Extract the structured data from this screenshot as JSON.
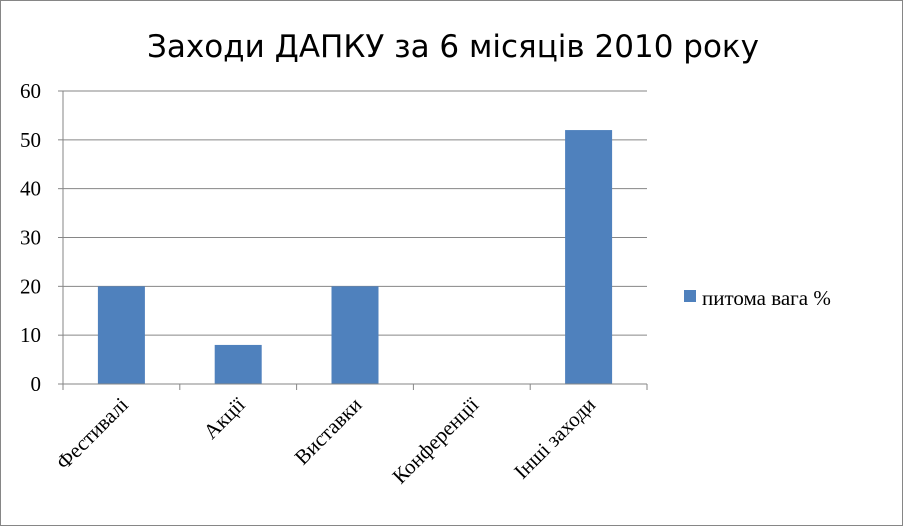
{
  "chart_data": {
    "type": "bar",
    "title": "Заходи ДАПКУ за 6 місяців 2010 року",
    "categories": [
      "Фестивалі",
      "Акції",
      "Виставки",
      "Конференції",
      "Інші заходи"
    ],
    "series": [
      {
        "name": "питома вага %",
        "values": [
          20,
          8,
          20,
          0,
          52
        ],
        "color": "#4F81BD"
      }
    ],
    "yticks": [
      "0",
      "10",
      "20",
      "30",
      "40",
      "50",
      "60"
    ],
    "ylim": [
      0,
      60
    ],
    "xlabel": "",
    "ylabel": "",
    "grid": true,
    "legend_position": "right"
  }
}
